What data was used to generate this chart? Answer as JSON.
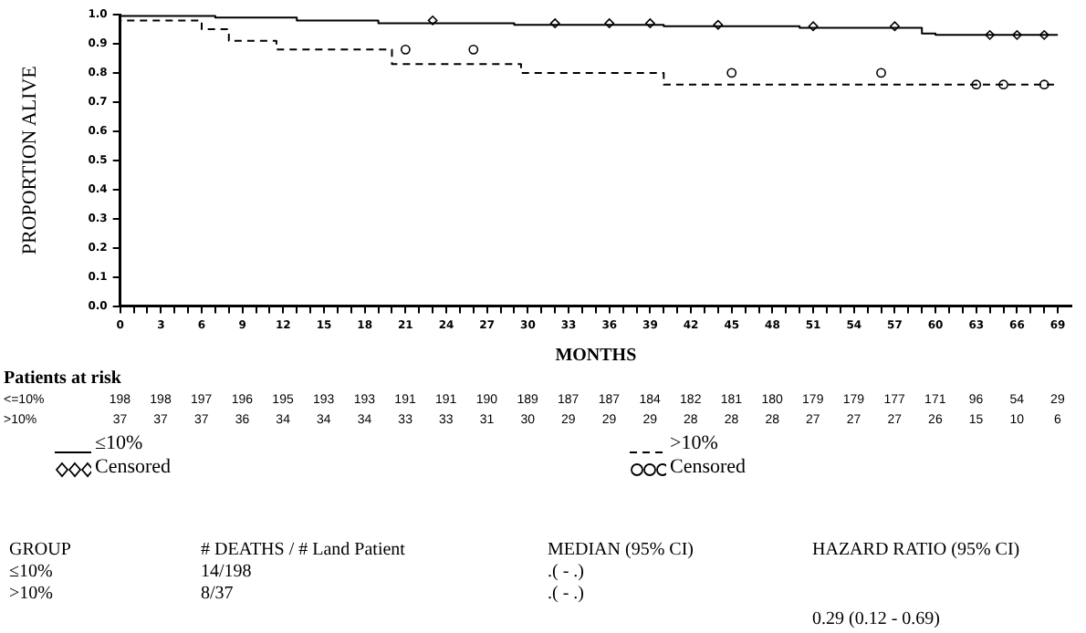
{
  "chart_data": {
    "type": "step",
    "ylabel": "PROPORTION ALIVE",
    "xlabel": "MONTHS",
    "legend": "bottom",
    "xlim": [
      0,
      70
    ],
    "ylim": [
      0,
      1
    ],
    "yticks": [
      {
        "value": 0,
        "label": "0.0"
      },
      {
        "value": 0.1,
        "label": "0.1"
      },
      {
        "value": 0.2,
        "label": "0.2"
      },
      {
        "value": 0.3,
        "label": "0.3"
      },
      {
        "value": 0.4,
        "label": "0.4"
      },
      {
        "value": 0.5,
        "label": "0.5"
      },
      {
        "value": 0.6,
        "label": "0.6"
      },
      {
        "value": 0.7,
        "label": "0.7"
      },
      {
        "value": 0.8,
        "label": "0.8"
      },
      {
        "value": 0.9,
        "label": "0.9"
      },
      {
        "value": 1,
        "label": "1.0"
      }
    ],
    "xticks": [
      0,
      {
        "value": 1,
        "label": null
      },
      {
        "value": 2,
        "label": null
      },
      3,
      {
        "value": 4,
        "label": null
      },
      {
        "value": 5,
        "label": null
      },
      6,
      {
        "value": 7,
        "label": null
      },
      {
        "value": 8,
        "label": null
      },
      9,
      {
        "value": 10,
        "label": null
      },
      {
        "value": 11,
        "label": null
      },
      12,
      {
        "value": 13,
        "label": null
      },
      {
        "value": 14,
        "label": null
      },
      15,
      {
        "value": 16,
        "label": null
      },
      {
        "value": 17,
        "label": null
      },
      18,
      {
        "value": 19,
        "label": null
      },
      {
        "value": 20,
        "label": null
      },
      21,
      {
        "value": 22,
        "label": null
      },
      {
        "value": 23,
        "label": null
      },
      24,
      {
        "value": 25,
        "label": null
      },
      {
        "value": 26,
        "label": null
      },
      27,
      {
        "value": 28,
        "label": null
      },
      {
        "value": 29,
        "label": null
      },
      30,
      {
        "value": 31,
        "label": null
      },
      {
        "value": 32,
        "label": null
      },
      33,
      {
        "value": 34,
        "label": null
      },
      {
        "value": 35,
        "label": null
      },
      36,
      {
        "value": 37,
        "label": null
      },
      {
        "value": 38,
        "label": null
      },
      39,
      {
        "value": 40,
        "label": null
      },
      {
        "value": 41,
        "label": null
      },
      42,
      {
        "value": 43,
        "label": null
      },
      {
        "value": 44,
        "label": null
      },
      45,
      {
        "value": 46,
        "label": null
      },
      {
        "value": 47,
        "label": null
      },
      48,
      {
        "value": 49,
        "label": null
      },
      {
        "value": 50,
        "label": null
      },
      51,
      {
        "value": 52,
        "label": null
      },
      {
        "value": 53,
        "label": null
      },
      54,
      {
        "value": 55,
        "label": null
      },
      {
        "value": 56,
        "label": null
      },
      57,
      {
        "value": 58,
        "label": null
      },
      {
        "value": 59,
        "label": null
      },
      60,
      {
        "value": 61,
        "label": null
      },
      {
        "value": 62,
        "label": null
      },
      63,
      {
        "value": 64,
        "label": null
      },
      {
        "value": 65,
        "label": null
      },
      66,
      {
        "value": 67,
        "label": null
      },
      {
        "value": 68,
        "label": null
      },
      69
    ],
    "series": [
      {
        "name": "≤10%",
        "color": "#000000",
        "line_style": "solid",
        "marker": "none",
        "x": [
          0,
          7,
          13,
          19,
          29,
          40,
          50,
          59,
          60,
          61,
          69
        ],
        "values": [
          1,
          0.995,
          0.99,
          0.98,
          0.97,
          0.965,
          0.96,
          0.955,
          0.935,
          0.93,
          0.93
        ]
      },
      {
        "name": "Censored",
        "type": "scatter",
        "color": "#000000",
        "marker": "diamond",
        "x": [
          23,
          32,
          36,
          39,
          44,
          51,
          57,
          64,
          66,
          68
        ],
        "values": [
          0.98,
          0.97,
          0.97,
          0.97,
          0.965,
          0.96,
          0.96,
          0.93,
          0.93,
          0.93
        ]
      },
      {
        "name": ">10%",
        "color": "#000000",
        "line_style": "dashed",
        "marker": "none",
        "x": [
          0,
          6,
          8,
          11.5,
          20,
          29.5,
          40,
          60.5,
          69
        ],
        "values": [
          1,
          0.98,
          0.95,
          0.91,
          0.88,
          0.83,
          0.8,
          0.76,
          0.76
        ]
      },
      {
        "name": "Censored",
        "type": "scatter",
        "color": "#000000",
        "marker": "circle",
        "x": [
          21,
          26,
          45,
          56,
          63,
          65,
          68
        ],
        "values": [
          0.88,
          0.88,
          0.8,
          0.8,
          0.76,
          0.76,
          0.76
        ]
      }
    ],
    "annotations": [
      "Patients at risk",
      "<=10%\t198\t198\t197\t196\t195\t193\t193\t191\t191\t190\t189\t187\t187\t184\t182\t181\t180\t179\t179\t177\t171\t96\t54\t29",
      ">10%\t37\t37\t37\t36\t34\t34\t34\t33\t33\t31\t30\t29\t29\t29\t28\t28\t28\t27\t27\t27\t26\t15\t10\t6",
      "GROUP\t# DEATHS / # Land Patient\tMEDIAN (95% CI)\tHAZARD RATIO (95% CI)",
      "≤10%\t14/198\t.( - .)\t",
      ">10%\t8/37\t.( - .)\t",
      "\t\t\t0.29 (0.12 - 0.69)"
    ]
  }
}
